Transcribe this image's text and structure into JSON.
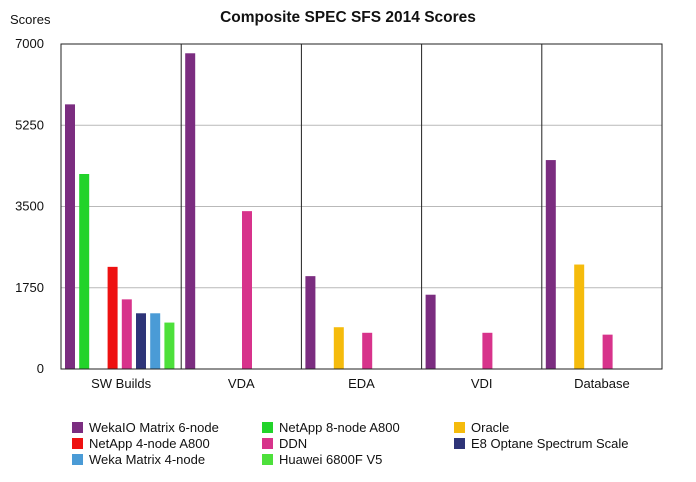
{
  "chart_data": {
    "type": "bar",
    "title": "Composite SPEC SFS 2014 Scores",
    "ylabel": "Scores",
    "xlabel": "",
    "ylim": [
      0,
      7000
    ],
    "yticks": [
      0,
      1750,
      3500,
      5250,
      7000
    ],
    "grid": true,
    "legend_position": "bottom",
    "categories": [
      "SW Builds",
      "VDA",
      "EDA",
      "VDI",
      "Database"
    ],
    "series": [
      {
        "name": "WekaIO Matrix 6-node",
        "color": "#7b2d80",
        "values": [
          5700,
          6800,
          2000,
          1600,
          4500
        ]
      },
      {
        "name": "NetApp 8-node A800",
        "color": "#22d32a",
        "values": [
          4200,
          null,
          null,
          null,
          null
        ]
      },
      {
        "name": "Oracle",
        "color": "#f5bb0c",
        "values": [
          null,
          null,
          900,
          null,
          2250
        ]
      },
      {
        "name": "NetApp 4-node A800",
        "color": "#ee1111",
        "values": [
          2200,
          null,
          null,
          null,
          null
        ]
      },
      {
        "name": "DDN",
        "color": "#d7338b",
        "values": [
          1500,
          3400,
          780,
          780,
          740
        ]
      },
      {
        "name": "E8 Optane Spectrum Scale",
        "color": "#2e3478",
        "values": [
          1200,
          null,
          null,
          null,
          null
        ]
      },
      {
        "name": "Weka Matrix 4-node",
        "color": "#4a9bd6",
        "values": [
          1200,
          null,
          null,
          null,
          null
        ]
      },
      {
        "name": "Huawei 6800F V5",
        "color": "#4de03b",
        "values": [
          1000,
          null,
          null,
          null,
          null
        ]
      }
    ]
  },
  "legend": {
    "items": [
      {
        "name": "WekaIO Matrix 6-node",
        "color": "#7b2d80"
      },
      {
        "name": "NetApp 4-node A800",
        "color": "#ee1111"
      },
      {
        "name": "Weka Matrix 4-node",
        "color": "#4a9bd6"
      },
      {
        "name": "NetApp 8-node A800",
        "color": "#22d32a"
      },
      {
        "name": "DDN",
        "color": "#d7338b"
      },
      {
        "name": "Huawei 6800F V5",
        "color": "#4de03b"
      },
      {
        "name": "Oracle",
        "color": "#f5bb0c"
      },
      {
        "name": "E8 Optane Spectrum Scale",
        "color": "#2e3478"
      }
    ]
  }
}
